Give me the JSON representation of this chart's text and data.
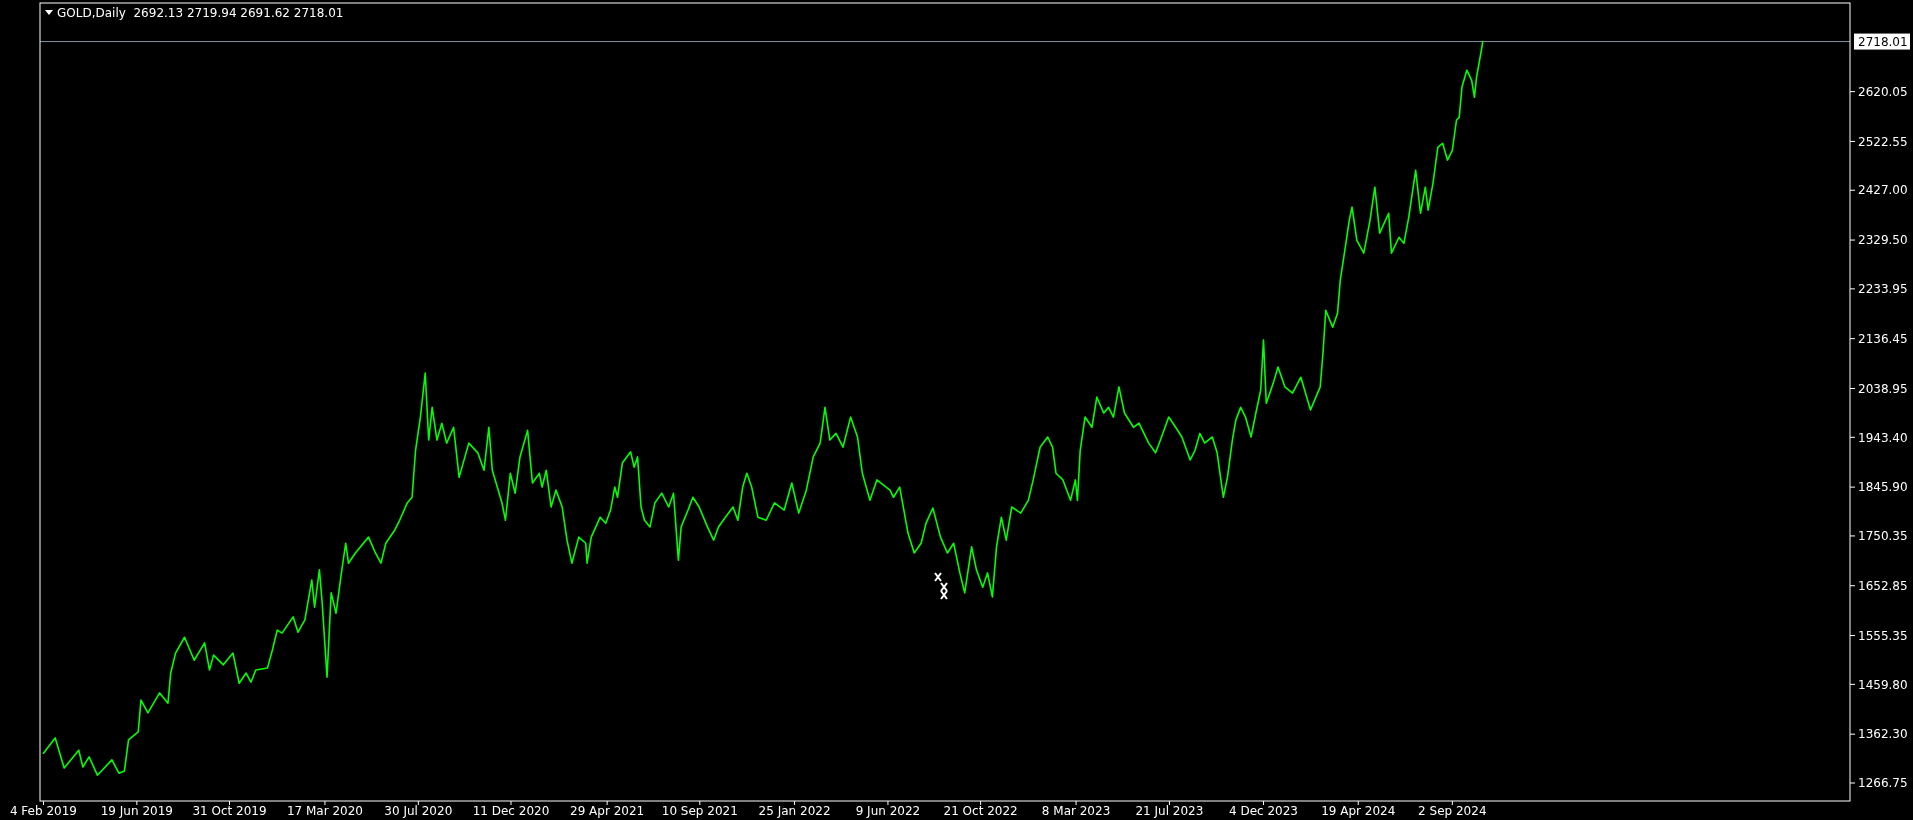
{
  "chart_data": {
    "type": "line",
    "title": "GOLD,Daily  2692.13 2719.94 2691.62 2718.01",
    "color": "#00ff00",
    "x": [
      "2019-02-04",
      "2019-02-21",
      "2019-03-06",
      "2019-03-27",
      "2019-04-02",
      "2019-04-11",
      "2019-04-23",
      "2019-05-14",
      "2019-05-24",
      "2019-06-01",
      "2019-06-07",
      "2019-06-21",
      "2019-06-25",
      "2019-07-05",
      "2019-07-22",
      "2019-08-03",
      "2019-08-07",
      "2019-08-14",
      "2019-08-27",
      "2019-09-10",
      "2019-09-25",
      "2019-10-02",
      "2019-10-08",
      "2019-10-22",
      "2019-11-05",
      "2019-11-14",
      "2019-11-24",
      "2019-12-01",
      "2019-12-08",
      "2019-12-25",
      "2020-01-01",
      "2020-01-08",
      "2020-01-15",
      "2020-01-31",
      "2020-02-07",
      "2020-02-17",
      "2020-02-27",
      "2020-03-02",
      "2020-03-09",
      "2020-03-13",
      "2020-03-20",
      "2020-03-26",
      "2020-04-02",
      "2020-04-09",
      "2020-04-16",
      "2020-04-20",
      "2020-04-30",
      "2020-05-19",
      "2020-05-29",
      "2020-06-06",
      "2020-06-13",
      "2020-06-26",
      "2020-07-03",
      "2020-07-14",
      "2020-07-21",
      "2020-07-26",
      "2020-08-02",
      "2020-08-09",
      "2020-08-14",
      "2020-08-19",
      "2020-08-26",
      "2020-09-02",
      "2020-09-09",
      "2020-09-19",
      "2020-09-27",
      "2020-10-11",
      "2020-10-24",
      "2020-11-02",
      "2020-11-09",
      "2020-11-14",
      "2020-11-28",
      "2020-12-03",
      "2020-12-10",
      "2020-12-17",
      "2020-12-24",
      "2021-01-04",
      "2021-01-11",
      "2021-01-21",
      "2021-01-25",
      "2021-01-31",
      "2021-02-07",
      "2021-02-14",
      "2021-02-23",
      "2021-03-02",
      "2021-03-09",
      "2021-03-19",
      "2021-03-29",
      "2021-03-31",
      "2021-04-06",
      "2021-04-19",
      "2021-04-27",
      "2021-05-04",
      "2021-05-10",
      "2021-05-14",
      "2021-05-21",
      "2021-06-02",
      "2021-06-07",
      "2021-06-12",
      "2021-06-17",
      "2021-06-22",
      "2021-06-30",
      "2021-07-07",
      "2021-07-17",
      "2021-07-27",
      "2021-08-03",
      "2021-08-10",
      "2021-08-14",
      "2021-08-24",
      "2021-08-31",
      "2021-09-09",
      "2021-09-21",
      "2021-09-30",
      "2021-10-07",
      "2021-10-17",
      "2021-10-28",
      "2021-11-04",
      "2021-11-11",
      "2021-11-17",
      "2021-11-24",
      "2021-12-03",
      "2021-12-15",
      "2021-12-27",
      "2022-01-10",
      "2022-01-21",
      "2022-01-31",
      "2022-02-11",
      "2022-02-21",
      "2022-03-03",
      "2022-03-10",
      "2022-03-17",
      "2022-03-26",
      "2022-04-05",
      "2022-04-16",
      "2022-04-26",
      "2022-05-03",
      "2022-05-14",
      "2022-05-24",
      "2022-06-12",
      "2022-06-17",
      "2022-06-26",
      "2022-07-08",
      "2022-07-17",
      "2022-07-27",
      "2022-08-03",
      "2022-08-13",
      "2022-08-24",
      "2022-09-03",
      "2022-09-12",
      "2022-09-21",
      "2022-09-28",
      "2022-10-08",
      "2022-10-15",
      "2022-10-24",
      "2022-10-31",
      "2022-11-07",
      "2022-11-13",
      "2022-11-20",
      "2022-11-27",
      "2022-12-05",
      "2022-12-18",
      "2022-12-29",
      "2023-01-05",
      "2023-01-15",
      "2023-01-26",
      "2023-02-02",
      "2023-02-07",
      "2023-02-17",
      "2023-02-28",
      "2023-03-07",
      "2023-03-10",
      "2023-03-14",
      "2023-03-21",
      "2023-03-31",
      "2023-04-07",
      "2023-04-17",
      "2023-04-24",
      "2023-05-01",
      "2023-05-09",
      "2023-05-17",
      "2023-05-30",
      "2023-06-07",
      "2023-06-21",
      "2023-07-01",
      "2023-07-08",
      "2023-07-20",
      "2023-07-30",
      "2023-08-08",
      "2023-08-20",
      "2023-08-27",
      "2023-09-03",
      "2023-09-10",
      "2023-09-21",
      "2023-09-28",
      "2023-10-04",
      "2023-10-07",
      "2023-10-13",
      "2023-10-20",
      "2023-10-25",
      "2023-11-01",
      "2023-11-08",
      "2023-11-16",
      "2023-11-23",
      "2023-11-30",
      "2023-12-04",
      "2023-12-08",
      "2023-12-18",
      "2023-12-25",
      "2024-01-04",
      "2024-01-15",
      "2024-01-27",
      "2024-02-10",
      "2024-02-24",
      "2024-02-28",
      "2024-03-03",
      "2024-03-13",
      "2024-03-20",
      "2024-03-24",
      "2024-03-30",
      "2024-04-06",
      "2024-04-10",
      "2024-04-17",
      "2024-04-27",
      "2024-05-06",
      "2024-05-13",
      "2024-05-20",
      "2024-06-02",
      "2024-06-06",
      "2024-06-17",
      "2024-06-24",
      "2024-07-01",
      "2024-07-11",
      "2024-07-18",
      "2024-07-25",
      "2024-07-29",
      "2024-08-05",
      "2024-08-12",
      "2024-08-19",
      "2024-08-26",
      "2024-09-02",
      "2024-09-08",
      "2024-09-12",
      "2024-09-16",
      "2024-09-23",
      "2024-09-30",
      "2024-10-04",
      "2024-10-07",
      "2024-10-14",
      "2024-10-16"
    ],
    "values": [
      1325,
      1355,
      1296,
      1331,
      1298,
      1318,
      1282,
      1312,
      1286,
      1290,
      1351,
      1367,
      1429,
      1404,
      1443,
      1423,
      1482,
      1521,
      1552,
      1507,
      1541,
      1488,
      1517,
      1498,
      1521,
      1462,
      1482,
      1464,
      1488,
      1492,
      1527,
      1566,
      1560,
      1592,
      1562,
      1586,
      1664,
      1611,
      1684,
      1619,
      1474,
      1639,
      1599,
      1670,
      1736,
      1697,
      1717,
      1748,
      1717,
      1697,
      1736,
      1762,
      1781,
      1815,
      1826,
      1918,
      1983,
      2069,
      1938,
      2002,
      1938,
      1971,
      1932,
      1963,
      1865,
      1932,
      1913,
      1879,
      1963,
      1879,
      1815,
      1781,
      1873,
      1834,
      1905,
      1957,
      1854,
      1873,
      1846,
      1879,
      1807,
      1840,
      1807,
      1742,
      1697,
      1748,
      1736,
      1697,
      1748,
      1787,
      1775,
      1801,
      1846,
      1826,
      1893,
      1915,
      1885,
      1905,
      1807,
      1781,
      1768,
      1815,
      1834,
      1807,
      1834,
      1703,
      1768,
      1801,
      1826,
      1807,
      1768,
      1742,
      1768,
      1787,
      1807,
      1781,
      1846,
      1873,
      1846,
      1787,
      1781,
      1815,
      1801,
      1854,
      1795,
      1840,
      1905,
      1932,
      2002,
      1938,
      1951,
      1924,
      1983,
      1944,
      1873,
      1820,
      1860,
      1840,
      1826,
      1846,
      1756,
      1717,
      1736,
      1775,
      1805,
      1748,
      1717,
      1736,
      1678,
      1639,
      1729,
      1684,
      1650,
      1678,
      1631,
      1729,
      1787,
      1742,
      1807,
      1795,
      1820,
      1860,
      1924,
      1944,
      1924,
      1873,
      1860,
      1820,
      1860,
      1820,
      1918,
      1983,
      1963,
      2022,
      1991,
      2002,
      1983,
      2042,
      1991,
      1963,
      1971,
      1932,
      1913,
      1938,
      1983,
      1963,
      1944,
      1899,
      1918,
      1951,
      1932,
      1944,
      1913,
      1854,
      1826,
      1866,
      1938,
      1977,
      2002,
      1983,
      1944,
      1991,
      2036,
      2134,
      2010,
      2049,
      2081,
      2042,
      2030,
      2061,
      1997,
      2042,
      2108,
      2192,
      2159,
      2186,
      2251,
      2304,
      2368,
      2394,
      2329,
      2304,
      2368,
      2433,
      2343,
      2382,
      2304,
      2335,
      2323,
      2374,
      2466,
      2382,
      2433,
      2388,
      2440,
      2511,
      2519,
      2486,
      2505,
      2564,
      2570,
      2629,
      2662,
      2642,
      2609,
      2648,
      2701,
      2718.01
    ],
    "xlim": [
      "2019-01-30",
      "2026-03-31"
    ],
    "xticks": [
      {
        "value": "2019-02-04",
        "label": "4 Feb 2019"
      },
      {
        "value": "2019-06-19",
        "label": "19 Jun 2019"
      },
      {
        "value": "2019-10-31",
        "label": "31 Oct 2019"
      },
      {
        "value": "2020-03-17",
        "label": "17 Mar 2020"
      },
      {
        "value": "2020-07-30",
        "label": "30 Jul 2020"
      },
      {
        "value": "2020-12-11",
        "label": "11 Dec 2020"
      },
      {
        "value": "2021-04-29",
        "label": "29 Apr 2021"
      },
      {
        "value": "2021-09-10",
        "label": "10 Sep 2021"
      },
      {
        "value": "2022-01-25",
        "label": "25 Jan 2022"
      },
      {
        "value": "2022-06-09",
        "label": "9 Jun 2022"
      },
      {
        "value": "2022-10-21",
        "label": "21 Oct 2022"
      },
      {
        "value": "2023-03-08",
        "label": "8 Mar 2023"
      },
      {
        "value": "2023-07-21",
        "label": "21 Jul 2023"
      },
      {
        "value": "2023-12-04",
        "label": "4 Dec 2023"
      },
      {
        "value": "2024-04-19",
        "label": "19 Apr 2024"
      },
      {
        "value": "2024-09-02",
        "label": "2 Sep 2024"
      }
    ],
    "ylim": [
      1231.5,
      2793.5
    ],
    "yticks": [
      {
        "value": 1266.75,
        "label": "1266.75"
      },
      {
        "value": 1362.3,
        "label": "1362.30"
      },
      {
        "value": 1459.8,
        "label": "1459.80"
      },
      {
        "value": 1555.35,
        "label": "1555.35"
      },
      {
        "value": 1652.85,
        "label": "1652.85"
      },
      {
        "value": 1750.35,
        "label": "1750.35"
      },
      {
        "value": 1845.9,
        "label": "1845.90"
      },
      {
        "value": 1943.4,
        "label": "1943.40"
      },
      {
        "value": 2038.95,
        "label": "2038.95"
      },
      {
        "value": 2136.45,
        "label": "2136.45"
      },
      {
        "value": 2233.95,
        "label": "2233.95"
      },
      {
        "value": 2329.5,
        "label": "2329.50"
      },
      {
        "value": 2427,
        "label": "2427.00"
      },
      {
        "value": 2522.55,
        "label": "2522.55"
      },
      {
        "value": 2620.05,
        "label": "2620.05"
      }
    ],
    "ref_lines": [
      {
        "axis": "y",
        "value": 2718.01,
        "label": "2718.01",
        "color": "#8593a3"
      }
    ]
  }
}
